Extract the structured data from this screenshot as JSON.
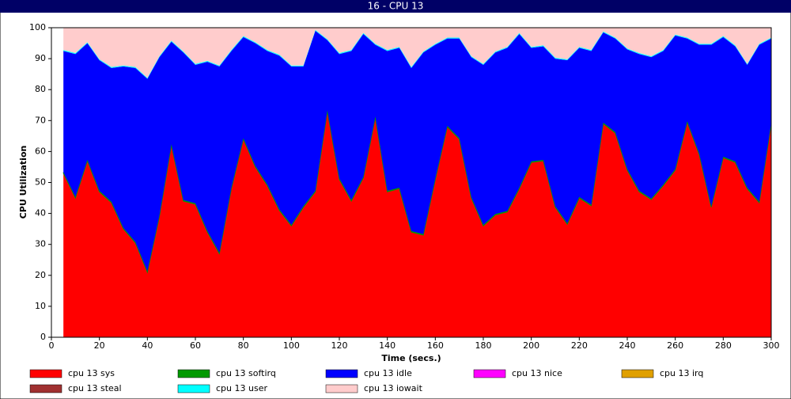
{
  "chart_data": {
    "type": "stacked_area",
    "title": "16 - CPU 13",
    "x_label": "Time (secs.)",
    "y_label": "CPU Utilization",
    "xlim": [
      0,
      300
    ],
    "ylim": [
      0,
      100
    ],
    "xticks": [
      0,
      20,
      40,
      60,
      80,
      100,
      120,
      140,
      160,
      180,
      200,
      220,
      240,
      260,
      280,
      300
    ],
    "yticks": [
      0,
      10,
      20,
      30,
      40,
      50,
      60,
      70,
      80,
      90,
      100
    ],
    "x": [
      5,
      10,
      15,
      20,
      25,
      30,
      35,
      40,
      45,
      50,
      55,
      60,
      65,
      70,
      75,
      80,
      85,
      90,
      95,
      100,
      105,
      110,
      115,
      120,
      125,
      130,
      135,
      140,
      145,
      150,
      155,
      160,
      165,
      170,
      175,
      180,
      185,
      190,
      195,
      200,
      205,
      210,
      215,
      220,
      225,
      230,
      235,
      240,
      245,
      250,
      255,
      260,
      265,
      270,
      275,
      280,
      285,
      290,
      295,
      300
    ],
    "series": [
      {
        "name": "cpu 13 sys",
        "color": "#ff0000",
        "values": [
          53,
          45,
          57,
          47,
          43.5,
          35,
          30.5,
          21,
          39,
          62,
          44,
          43,
          34,
          27,
          48,
          64,
          55,
          49,
          41,
          36,
          42,
          47,
          73,
          51,
          44,
          51.5,
          71,
          47,
          48,
          34,
          33,
          51,
          68,
          64,
          45,
          36,
          39.5,
          40.5,
          48,
          56.5,
          57,
          42,
          36.5,
          45,
          42.5,
          69,
          66,
          54,
          47,
          44.5,
          49,
          54,
          69.5,
          59,
          42,
          58,
          56.5,
          48,
          43.5,
          69
        ]
      },
      {
        "name": "cpu 13 softirq",
        "color": "#009900",
        "values": [
          0.3,
          0.3,
          0.3,
          0.3,
          0.3,
          0.3,
          0.3,
          0.3,
          0.3,
          0.3,
          0.3,
          0.3,
          0.3,
          0.3,
          0.3,
          0.3,
          0.3,
          0.3,
          0.3,
          0.3,
          0.3,
          0.3,
          0.3,
          0.3,
          0.3,
          0.3,
          0.3,
          0.3,
          0.3,
          0.3,
          0.3,
          0.3,
          0.3,
          0.3,
          0.3,
          0.3,
          0.3,
          0.3,
          0.3,
          0.3,
          0.3,
          0.3,
          0.3,
          0.3,
          0.3,
          0.3,
          0.3,
          0.3,
          0.3,
          0.3,
          0.3,
          0.3,
          0.3,
          0.3,
          0.3,
          0.3,
          0.3,
          0.3,
          0.3,
          0.3
        ]
      },
      {
        "name": "cpu 13 idle",
        "color": "#0000ff",
        "values": [
          39.2,
          46.2,
          37.7,
          42.2,
          43.2,
          52.2,
          56.2,
          62.2,
          51.2,
          33.2,
          47.7,
          44.7,
          54.7,
          60.2,
          44.2,
          32.7,
          39.7,
          43.2,
          49.7,
          51.2,
          45.2,
          51.7,
          22.7,
          40.2,
          48.2,
          46.2,
          23.2,
          45.2,
          45.2,
          52.7,
          58.7,
          43.2,
          28.2,
          32.2,
          45.2,
          51.7,
          52.2,
          52.7,
          49.7,
          36.7,
          36.7,
          47.7,
          52.7,
          48.2,
          49.7,
          29.2,
          30.2,
          38.7,
          44.2,
          45.7,
          43.2,
          43.2,
          26.7,
          35.2,
          52.2,
          38.7,
          37.2,
          39.7,
          50.7,
          27.2
        ]
      },
      {
        "name": "cpu 13 nice",
        "color": "#ff00ff",
        "values": [
          0,
          0,
          0,
          0,
          0,
          0,
          0,
          0,
          0,
          0,
          0,
          0,
          0,
          0,
          0,
          0,
          0,
          0,
          0,
          0,
          0,
          0,
          0,
          0,
          0,
          0,
          0,
          0,
          0,
          0,
          0,
          0,
          0,
          0,
          0,
          0,
          0,
          0,
          0,
          0,
          0,
          0,
          0,
          0,
          0,
          0,
          0,
          0,
          0,
          0,
          0,
          0,
          0,
          0,
          0,
          0,
          0,
          0,
          0,
          0
        ]
      },
      {
        "name": "cpu 13 irq",
        "color": "#e0a000",
        "values": [
          0,
          0,
          0,
          0,
          0,
          0,
          0,
          0,
          0,
          0,
          0,
          0,
          0,
          0,
          0,
          0,
          0,
          0,
          0,
          0,
          0,
          0,
          0,
          0,
          0,
          0,
          0,
          0,
          0,
          0,
          0,
          0,
          0,
          0,
          0,
          0,
          0,
          0,
          0,
          0,
          0,
          0,
          0,
          0,
          0,
          0,
          0,
          0,
          0,
          0,
          0,
          0,
          0,
          0,
          0,
          0,
          0,
          0,
          0,
          0
        ]
      },
      {
        "name": "cpu 13 steal",
        "color": "#a03030",
        "values": [
          0,
          0,
          0,
          0,
          0,
          0,
          0,
          0,
          0,
          0,
          0,
          0,
          0,
          0,
          0,
          0,
          0,
          0,
          0,
          0,
          0,
          0,
          0,
          0,
          0,
          0,
          0,
          0,
          0,
          0,
          0,
          0,
          0,
          0,
          0,
          0,
          0,
          0,
          0,
          0,
          0,
          0,
          0,
          0,
          0,
          0,
          0,
          0,
          0,
          0,
          0,
          0,
          0,
          0,
          0,
          0,
          0,
          0,
          0,
          0
        ]
      },
      {
        "name": "cpu 13 user",
        "color": "#00ffff",
        "values": [
          0.3,
          0.3,
          0.3,
          0.3,
          0.3,
          0.3,
          0.3,
          0.3,
          0.3,
          0.3,
          0.3,
          0.3,
          0.3,
          0.3,
          0.3,
          0.3,
          0.3,
          0.3,
          0.3,
          0.3,
          0.3,
          0.3,
          0.3,
          0.3,
          0.3,
          0.3,
          0.3,
          0.3,
          0.3,
          0.3,
          0.3,
          0.3,
          0.3,
          0.3,
          0.3,
          0.3,
          0.3,
          0.3,
          0.3,
          0.3,
          0.3,
          0.3,
          0.3,
          0.3,
          0.3,
          0.3,
          0.3,
          0.3,
          0.3,
          0.3,
          0.3,
          0.3,
          0.3,
          0.3,
          0.3,
          0.3,
          0.3,
          0.3,
          0.3,
          0.3
        ]
      },
      {
        "name": "cpu 13 iowait",
        "color": "#ffcccc",
        "values": [
          7.2,
          8.2,
          4.7,
          10.2,
          12.7,
          12.2,
          12.7,
          16.2,
          9.2,
          4.2,
          7.7,
          11.7,
          10.7,
          12.2,
          7.2,
          2.7,
          4.7,
          7.2,
          8.7,
          12.2,
          12.2,
          0.7,
          3.7,
          8.2,
          7.2,
          1.7,
          5.2,
          7.2,
          6.2,
          12.7,
          7.7,
          5.2,
          3.2,
          3.2,
          9.2,
          11.7,
          7.7,
          6.2,
          1.7,
          6.2,
          5.7,
          9.7,
          10.2,
          6.2,
          7.2,
          1.2,
          3.2,
          6.7,
          8.2,
          9.2,
          7.2,
          2.2,
          3.2,
          5.2,
          5.2,
          2.7,
          5.7,
          11.7,
          5.2,
          3.2
        ]
      }
    ]
  }
}
